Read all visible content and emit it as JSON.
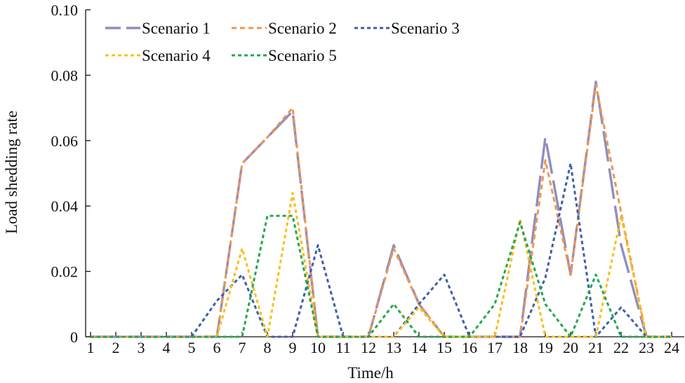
{
  "chart_data": {
    "type": "line",
    "xlabel": "Time/h",
    "ylabel": "Load shedding rate",
    "x": [
      1,
      2,
      3,
      4,
      5,
      6,
      7,
      8,
      9,
      10,
      11,
      12,
      13,
      14,
      15,
      16,
      17,
      18,
      19,
      20,
      21,
      22,
      23,
      24
    ],
    "ylim": [
      0,
      0.1
    ],
    "yticks": [
      "0",
      "0.02",
      "0.04",
      "0.06",
      "0.08",
      "0.10"
    ],
    "xticks": [
      "1",
      "2",
      "3",
      "4",
      "5",
      "6",
      "7",
      "8",
      "9",
      "10",
      "11",
      "12",
      "13",
      "14",
      "15",
      "16",
      "17",
      "18",
      "19",
      "20",
      "21",
      "22",
      "23",
      "24"
    ],
    "grid": false,
    "legend_position": "top-left",
    "series": [
      {
        "name": "Scenario 1",
        "color": "#8e8ec0",
        "style": "long-dash",
        "values": [
          0,
          0,
          0,
          0,
          0,
          0,
          0.053,
          0.061,
          0.069,
          0,
          0,
          0,
          0.028,
          0.01,
          0,
          0,
          0,
          0,
          0.061,
          0.019,
          0.078,
          0.028,
          0,
          0
        ]
      },
      {
        "name": "Scenario 2",
        "color": "#f0964e",
        "style": "dash",
        "values": [
          0,
          0,
          0,
          0,
          0,
          0,
          0.053,
          0.061,
          0.07,
          0,
          0,
          0,
          0.027,
          0.01,
          0,
          0,
          0,
          0,
          0.054,
          0.019,
          0.077,
          0.038,
          0,
          0
        ]
      },
      {
        "name": "Scenario 3",
        "color": "#3e5fa8",
        "style": "dot",
        "values": [
          0,
          0,
          0,
          0,
          0,
          0.011,
          0.019,
          0,
          0,
          0.028,
          0,
          0,
          0,
          0.01,
          0.019,
          0,
          0,
          0,
          0.018,
          0.053,
          0,
          0.009,
          0,
          0
        ]
      },
      {
        "name": "Scenario 4",
        "color": "#f8bf1e",
        "style": "dot",
        "values": [
          0,
          0,
          0,
          0,
          0,
          0,
          0.027,
          0,
          0.044,
          0,
          0,
          0,
          0,
          0.009,
          0,
          0,
          0,
          0.036,
          0,
          0,
          0,
          0.037,
          0,
          0
        ]
      },
      {
        "name": "Scenario 5",
        "color": "#24a84a",
        "style": "dot",
        "values": [
          0,
          0,
          0,
          0,
          0,
          0,
          0,
          0.037,
          0.037,
          0,
          0,
          0,
          0.01,
          0,
          0,
          0,
          0.01,
          0.035,
          0.01,
          0,
          0.019,
          0,
          0,
          0
        ]
      }
    ]
  }
}
